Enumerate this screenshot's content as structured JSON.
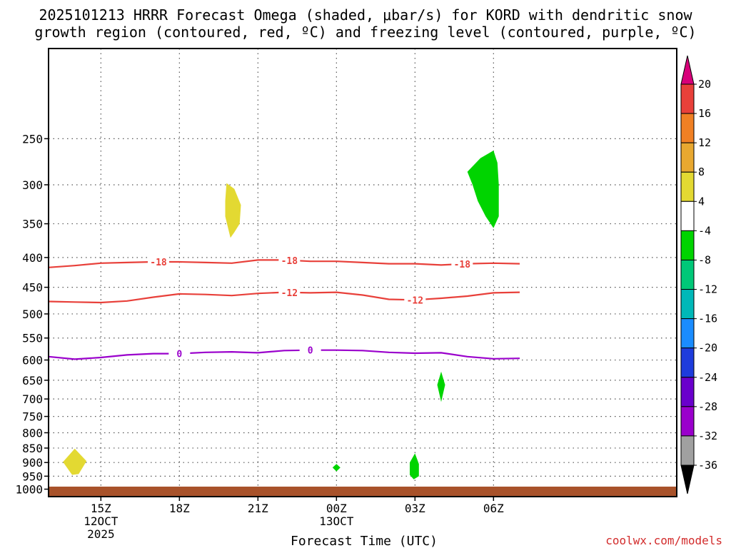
{
  "chart_data": {
    "type": "contour",
    "title_line1": "2025101213 HRRR Forecast Omega (shaded, μbar/s) for KORD with dendritic snow",
    "title_line2": "growth region (contoured, red, ºC) and freezing level (contoured, purple, ºC)",
    "xlabel": "Forecast Time (UTC)",
    "credit": "coolwx.com/models",
    "x_range": [
      13,
      37
    ],
    "y_range": [
      1030,
      175
    ],
    "y_scale": "log",
    "grid": true,
    "x_ticks": [
      {
        "x": 15,
        "lines": [
          "15Z",
          "12OCT",
          "2025"
        ]
      },
      {
        "x": 18,
        "lines": [
          "18Z"
        ]
      },
      {
        "x": 21,
        "lines": [
          "21Z"
        ]
      },
      {
        "x": 24,
        "lines": [
          "00Z",
          "13OCT"
        ]
      },
      {
        "x": 27,
        "lines": [
          "03Z"
        ]
      },
      {
        "x": 30,
        "lines": [
          "06Z"
        ]
      }
    ],
    "y_ticks": [
      250,
      300,
      350,
      400,
      450,
      500,
      550,
      600,
      650,
      700,
      750,
      800,
      850,
      900,
      950,
      1000
    ],
    "contours": [
      {
        "name": "-18",
        "color": "#e8403a",
        "labels": [
          {
            "x": 17.2,
            "label": "-18"
          },
          {
            "x": 22.2,
            "label": "-18"
          },
          {
            "x": 28.8,
            "label": "-18"
          }
        ],
        "points": [
          [
            13,
            416
          ],
          [
            14,
            413
          ],
          [
            15,
            409
          ],
          [
            16,
            408
          ],
          [
            17,
            407
          ],
          [
            18,
            407
          ],
          [
            19,
            408
          ],
          [
            20,
            409
          ],
          [
            21,
            404
          ],
          [
            22,
            404
          ],
          [
            23,
            406
          ],
          [
            24,
            406
          ],
          [
            25,
            408
          ],
          [
            26,
            410
          ],
          [
            27,
            410
          ],
          [
            28,
            412
          ],
          [
            29,
            410
          ],
          [
            30,
            409
          ],
          [
            31,
            410
          ]
        ]
      },
      {
        "name": "-12",
        "color": "#e8403a",
        "labels": [
          {
            "x": 22.2,
            "label": "-12"
          },
          {
            "x": 27.0,
            "label": "-12"
          }
        ],
        "points": [
          [
            13,
            476
          ],
          [
            14,
            477
          ],
          [
            15,
            478
          ],
          [
            16,
            475
          ],
          [
            17,
            468
          ],
          [
            18,
            462
          ],
          [
            19,
            463
          ],
          [
            20,
            465
          ],
          [
            21,
            461
          ],
          [
            22,
            459
          ],
          [
            23,
            460
          ],
          [
            24,
            459
          ],
          [
            25,
            464
          ],
          [
            26,
            472
          ],
          [
            27,
            473
          ],
          [
            28,
            470
          ],
          [
            29,
            466
          ],
          [
            30,
            460
          ],
          [
            31,
            459
          ]
        ]
      },
      {
        "name": "0",
        "color": "#9a00cc",
        "labels": [
          {
            "x": 18.0,
            "label": "0"
          },
          {
            "x": 23.0,
            "label": "0"
          }
        ],
        "points": [
          [
            13,
            592
          ],
          [
            14,
            598
          ],
          [
            15,
            594
          ],
          [
            16,
            588
          ],
          [
            17,
            585
          ],
          [
            18,
            585
          ],
          [
            19,
            582
          ],
          [
            20,
            581
          ],
          [
            21,
            583
          ],
          [
            22,
            578
          ],
          [
            23,
            577
          ],
          [
            24,
            577
          ],
          [
            25,
            578
          ],
          [
            26,
            582
          ],
          [
            27,
            584
          ],
          [
            28,
            583
          ],
          [
            29,
            592
          ],
          [
            30,
            597
          ],
          [
            31,
            596
          ]
        ]
      }
    ],
    "omega_regions": [
      {
        "fill": "#e3d932",
        "points": [
          [
            19.8,
            298
          ],
          [
            20.1,
            305
          ],
          [
            20.35,
            325
          ],
          [
            20.3,
            350
          ],
          [
            20.1,
            362
          ],
          [
            19.95,
            370
          ],
          [
            19.75,
            340
          ],
          [
            19.75,
            320
          ]
        ]
      },
      {
        "fill": "#00d400",
        "points": [
          [
            30.0,
            262
          ],
          [
            30.15,
            275
          ],
          [
            30.2,
            300
          ],
          [
            30.2,
            340
          ],
          [
            30.0,
            356
          ],
          [
            29.7,
            340
          ],
          [
            29.4,
            320
          ],
          [
            29.2,
            300
          ],
          [
            29.0,
            285
          ],
          [
            29.5,
            270
          ]
        ]
      },
      {
        "fill": "#00d400",
        "points": [
          [
            28.0,
            628
          ],
          [
            28.15,
            662
          ],
          [
            28.0,
            708
          ],
          [
            27.85,
            662
          ]
        ]
      },
      {
        "fill": "#00d400",
        "points": [
          [
            27.0,
            868
          ],
          [
            27.15,
            905
          ],
          [
            27.15,
            950
          ],
          [
            26.95,
            962
          ],
          [
            26.8,
            945
          ],
          [
            26.8,
            900
          ]
        ]
      },
      {
        "fill": "#00d400",
        "points": [
          [
            24.0,
            905
          ],
          [
            24.15,
            918
          ],
          [
            24.0,
            932
          ],
          [
            23.85,
            918
          ]
        ]
      },
      {
        "fill": "#e3d932",
        "points": [
          [
            14.0,
            852
          ],
          [
            14.45,
            895
          ],
          [
            14.15,
            942
          ],
          [
            13.9,
            945
          ],
          [
            13.55,
            898
          ]
        ]
      }
    ],
    "ground": {
      "fill": "#a8522a",
      "top_pressure": 990
    },
    "colorbar": {
      "labels": [
        "20",
        "16",
        "12",
        "8",
        "4",
        "-4",
        "-8",
        "-12",
        "-16",
        "-20",
        "-24",
        "-28",
        "-32",
        "-36"
      ],
      "colors": [
        "#e8403a",
        "#f08024",
        "#e8a830",
        "#e3d932",
        "#ffffff",
        "#00d400",
        "#00c878",
        "#00b8b8",
        "#1a8cff",
        "#1e3cdc",
        "#6a00cc",
        "#9a00cc",
        "#a0a0a0"
      ],
      "top_cap": "#d8007a",
      "bottom_cap": "#000000"
    }
  }
}
